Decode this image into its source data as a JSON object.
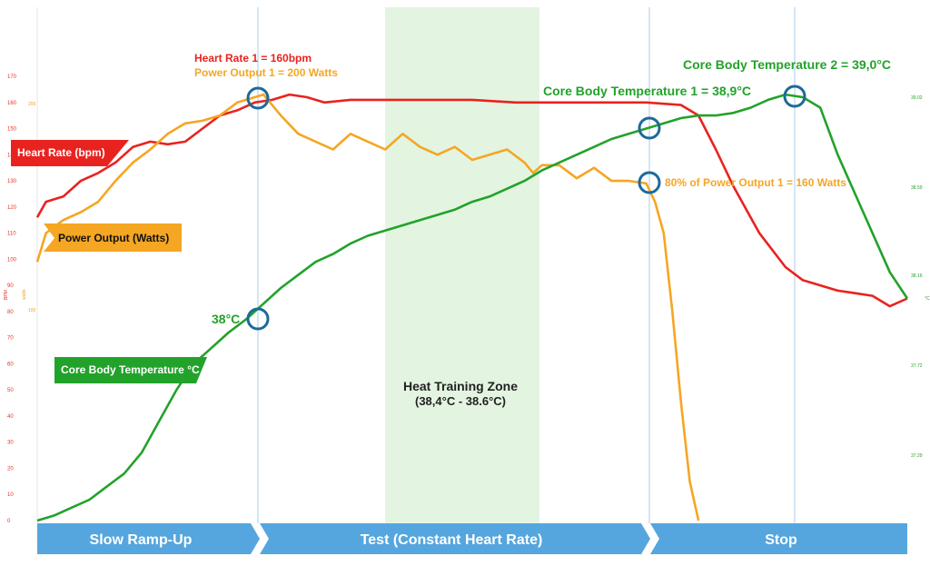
{
  "colors": {
    "heart_rate": "#e8231f",
    "power": "#f5a623",
    "core_temp": "#22a22a",
    "zone": "#e3f5e1",
    "phase": "#55a6de",
    "marker": "#1c6a9a",
    "phase_divider": "#b8d6ee"
  },
  "tags": {
    "heart_rate": "Heart Rate (bpm)",
    "power": "Power Output (Watts)",
    "core_temp": "Core Body Temperature °C"
  },
  "annotations": {
    "hr1": "Heart Rate 1 = 160bpm",
    "po1": "Power Output 1 = 200 Watts",
    "cbt2": "Core Body Temperature 2 = 39,0°C",
    "cbt1": "Core Body Temperature 1 = 38,9°C",
    "po80": "80% of Power Output 1 = 160 Watts",
    "t38": "38°C"
  },
  "zone": {
    "title": "Heat Training Zone",
    "range": "(38,4°C - 38.6°C)"
  },
  "phases": [
    "Slow Ramp-Up",
    "Test (Constant Heart Rate)",
    "Stop"
  ],
  "axis_titles": {
    "left": "BPM",
    "power": "watts",
    "right": "°C"
  },
  "chart_data": {
    "type": "line",
    "x_unit": "fraction of session",
    "left_axis": {
      "label": "BPM",
      "range": [
        0,
        170
      ],
      "ticks": [
        "0",
        "10",
        "20",
        "30",
        "40",
        "50",
        "60",
        "70",
        "80",
        "90",
        "100",
        "110",
        "120",
        "130",
        "140",
        "150",
        "160",
        "170"
      ]
    },
    "power_axis": {
      "label": "watts",
      "ticks": [
        "100",
        "200"
      ]
    },
    "right_axis": {
      "label": "°C",
      "ticks": [
        "37.29",
        "37.72",
        "38.16",
        "38.59",
        "39.02"
      ]
    },
    "series": [
      {
        "name": "Heart Rate (bpm)",
        "axis": "left",
        "points": [
          [
            0,
            116
          ],
          [
            0.01,
            122
          ],
          [
            0.03,
            124
          ],
          [
            0.05,
            130
          ],
          [
            0.07,
            133
          ],
          [
            0.09,
            137
          ],
          [
            0.11,
            143
          ],
          [
            0.13,
            145
          ],
          [
            0.15,
            144
          ],
          [
            0.17,
            145
          ],
          [
            0.19,
            150
          ],
          [
            0.21,
            155
          ],
          [
            0.23,
            157
          ],
          [
            0.25,
            160
          ],
          [
            0.27,
            161
          ],
          [
            0.29,
            163
          ],
          [
            0.31,
            162
          ],
          [
            0.33,
            160
          ],
          [
            0.36,
            161
          ],
          [
            0.4,
            161
          ],
          [
            0.45,
            161
          ],
          [
            0.5,
            161
          ],
          [
            0.55,
            160
          ],
          [
            0.6,
            160
          ],
          [
            0.65,
            160
          ],
          [
            0.7,
            160
          ],
          [
            0.74,
            159
          ],
          [
            0.76,
            155
          ],
          [
            0.78,
            142
          ],
          [
            0.8,
            128
          ],
          [
            0.83,
            110
          ],
          [
            0.86,
            97
          ],
          [
            0.88,
            92
          ],
          [
            0.9,
            90
          ],
          [
            0.92,
            88
          ],
          [
            0.94,
            87
          ],
          [
            0.96,
            86
          ],
          [
            0.98,
            82
          ],
          [
            1.0,
            85
          ]
        ]
      },
      {
        "name": "Power Output (Watts)",
        "axis": "left",
        "points": [
          [
            0,
            99
          ],
          [
            0.01,
            110
          ],
          [
            0.03,
            115
          ],
          [
            0.05,
            118
          ],
          [
            0.07,
            122
          ],
          [
            0.09,
            130
          ],
          [
            0.11,
            137
          ],
          [
            0.13,
            142
          ],
          [
            0.15,
            148
          ],
          [
            0.17,
            152
          ],
          [
            0.19,
            153
          ],
          [
            0.21,
            155
          ],
          [
            0.23,
            160
          ],
          [
            0.25,
            162
          ],
          [
            0.26,
            163
          ],
          [
            0.28,
            155
          ],
          [
            0.3,
            148
          ],
          [
            0.32,
            145
          ],
          [
            0.34,
            142
          ],
          [
            0.36,
            148
          ],
          [
            0.38,
            145
          ],
          [
            0.4,
            142
          ],
          [
            0.42,
            148
          ],
          [
            0.44,
            143
          ],
          [
            0.46,
            140
          ],
          [
            0.48,
            143
          ],
          [
            0.5,
            138
          ],
          [
            0.52,
            140
          ],
          [
            0.54,
            142
          ],
          [
            0.56,
            137
          ],
          [
            0.57,
            133
          ],
          [
            0.58,
            136
          ],
          [
            0.6,
            136
          ],
          [
            0.62,
            131
          ],
          [
            0.64,
            135
          ],
          [
            0.66,
            130
          ],
          [
            0.68,
            130
          ],
          [
            0.7,
            129
          ],
          [
            0.71,
            122
          ],
          [
            0.72,
            110
          ],
          [
            0.73,
            80
          ],
          [
            0.74,
            45
          ],
          [
            0.75,
            15
          ],
          [
            0.76,
            0
          ]
        ]
      },
      {
        "name": "Core Body Temperature °C",
        "axis": "left",
        "points": [
          [
            0,
            0
          ],
          [
            0.02,
            2
          ],
          [
            0.04,
            5
          ],
          [
            0.06,
            8
          ],
          [
            0.08,
            13
          ],
          [
            0.1,
            18
          ],
          [
            0.12,
            26
          ],
          [
            0.14,
            38
          ],
          [
            0.16,
            50
          ],
          [
            0.18,
            60
          ],
          [
            0.2,
            66
          ],
          [
            0.22,
            72
          ],
          [
            0.24,
            77
          ],
          [
            0.26,
            83
          ],
          [
            0.28,
            89
          ],
          [
            0.3,
            94
          ],
          [
            0.32,
            99
          ],
          [
            0.34,
            102
          ],
          [
            0.36,
            106
          ],
          [
            0.38,
            109
          ],
          [
            0.4,
            111
          ],
          [
            0.42,
            113
          ],
          [
            0.44,
            115
          ],
          [
            0.46,
            117
          ],
          [
            0.48,
            119
          ],
          [
            0.5,
            122
          ],
          [
            0.52,
            124
          ],
          [
            0.54,
            127
          ],
          [
            0.56,
            130
          ],
          [
            0.58,
            134
          ],
          [
            0.6,
            137
          ],
          [
            0.62,
            140
          ],
          [
            0.64,
            143
          ],
          [
            0.66,
            146
          ],
          [
            0.68,
            148
          ],
          [
            0.7,
            150
          ],
          [
            0.72,
            152
          ],
          [
            0.74,
            154
          ],
          [
            0.76,
            155
          ],
          [
            0.78,
            155
          ],
          [
            0.8,
            156
          ],
          [
            0.82,
            158
          ],
          [
            0.84,
            161
          ],
          [
            0.86,
            163
          ],
          [
            0.88,
            162
          ],
          [
            0.9,
            158
          ],
          [
            0.92,
            140
          ],
          [
            0.94,
            125
          ],
          [
            0.96,
            110
          ],
          [
            0.98,
            95
          ],
          [
            1.0,
            85
          ]
        ]
      }
    ]
  }
}
